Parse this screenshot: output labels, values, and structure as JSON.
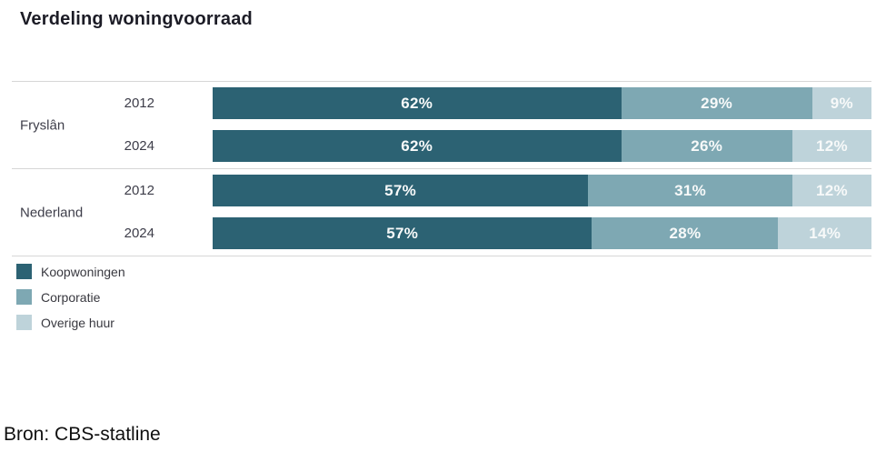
{
  "title": "Verdeling woningvoorraad",
  "source_note": "Bron: CBS-statline",
  "colors": {
    "koopwoningen": "#2c6273",
    "corporatie": "#7ea8b3",
    "overige_huur": "#bed3da",
    "separator_line": "#d6d6d6",
    "bar_value_text": "#f7f9f9",
    "axis_text": "#3d3d49"
  },
  "legend": {
    "items": [
      {
        "label": "Koopwoningen",
        "color": "#2c6273"
      },
      {
        "label": "Corporatie",
        "color": "#7ea8b3"
      },
      {
        "label": "Overige huur",
        "color": "#bed3da"
      }
    ]
  },
  "chart_data": {
    "type": "bar",
    "orientation": "horizontal",
    "stacked": true,
    "unit": "%",
    "title": "Verdeling woningvoorraad",
    "series_names": [
      "Koopwoningen",
      "Corporatie",
      "Overige huur"
    ],
    "legend_position": "bottom-left",
    "grid": false,
    "xlim": [
      0,
      100
    ],
    "groups": [
      {
        "label": "Fryslân",
        "rows": [
          {
            "year": "2012",
            "segments": [
              {
                "series": "Koopwoningen",
                "value": 62,
                "label": "62%"
              },
              {
                "series": "Corporatie",
                "value": 29,
                "label": "29%"
              },
              {
                "series": "Overige huur",
                "value": 9,
                "label": "9%"
              }
            ]
          },
          {
            "year": "2024",
            "segments": [
              {
                "series": "Koopwoningen",
                "value": 62,
                "label": "62%"
              },
              {
                "series": "Corporatie",
                "value": 26,
                "label": "26%"
              },
              {
                "series": "Overige huur",
                "value": 12,
                "label": "12%"
              }
            ]
          }
        ]
      },
      {
        "label": "Nederland",
        "rows": [
          {
            "year": "2012",
            "segments": [
              {
                "series": "Koopwoningen",
                "value": 57,
                "label": "57%"
              },
              {
                "series": "Corporatie",
                "value": 31,
                "label": "31%"
              },
              {
                "series": "Overige huur",
                "value": 12,
                "label": "12%"
              }
            ]
          },
          {
            "year": "2024",
            "segments": [
              {
                "series": "Koopwoningen",
                "value": 57,
                "label": "57%"
              },
              {
                "series": "Corporatie",
                "value": 28,
                "label": "28%"
              },
              {
                "series": "Overige huur",
                "value": 14,
                "label": "14%"
              }
            ]
          }
        ]
      }
    ]
  }
}
